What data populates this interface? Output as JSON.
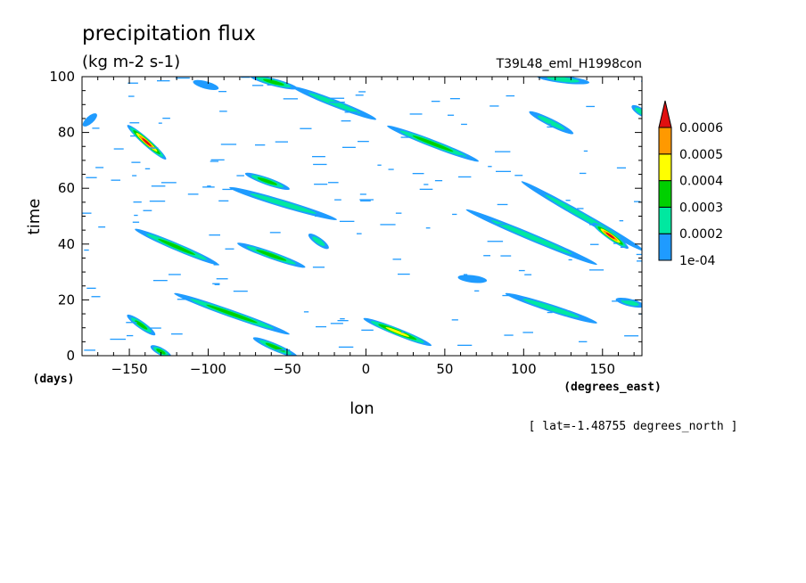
{
  "chart_data": {
    "type": "heatmap",
    "title": "precipitation flux",
    "units": "(kg m-2 s-1)",
    "run_label": "T39L48_eml_H1998con",
    "xlabel": "lon",
    "ylabel": "time",
    "x_units": "(degrees_east)",
    "y_units": "(days)",
    "xlim": [
      -180,
      175
    ],
    "ylim": [
      0,
      100
    ],
    "x_ticks": [
      -150,
      -100,
      -50,
      0,
      50,
      100,
      150
    ],
    "y_ticks": [
      0,
      20,
      40,
      60,
      80,
      100
    ],
    "annotation": "[ lat=-1.48755 degrees_north ]",
    "colorbar": {
      "levels": [
        "1e-04",
        "0.0002",
        "0.0003",
        "0.0004",
        "0.0005",
        "0.0006"
      ],
      "colors": [
        "#1f9bff",
        "#00e8a0",
        "#00d000",
        "#ffff00",
        "#ff9900",
        "#e01010"
      ]
    },
    "features": [
      {
        "lon": [
          -150,
          -128
        ],
        "time": [
          82,
          71
        ],
        "peak": 0.0006
      },
      {
        "lon": [
          -172,
          -178
        ],
        "time": [
          86,
          83
        ],
        "peak": 0.0001
      },
      {
        "lon": [
          -108,
          -95
        ],
        "time": [
          98,
          96
        ],
        "peak": 0.0001
      },
      {
        "lon": [
          -72,
          -45
        ],
        "time": [
          100,
          96
        ],
        "peak": 0.0003
      },
      {
        "lon": [
          -45,
          5
        ],
        "time": [
          96,
          85
        ],
        "peak": 0.0002
      },
      {
        "lon": [
          15,
          70
        ],
        "time": [
          82,
          70
        ],
        "peak": 0.0003
      },
      {
        "lon": [
          105,
          130
        ],
        "time": [
          87,
          80
        ],
        "peak": 0.0002
      },
      {
        "lon": [
          170,
          178
        ],
        "time": [
          89,
          86
        ],
        "peak": 0.0002
      },
      {
        "lon": [
          110,
          140
        ],
        "time": [
          100,
          98
        ],
        "peak": 0.0002
      },
      {
        "lon": [
          -75,
          -50
        ],
        "time": [
          65,
          60
        ],
        "peak": 0.0003
      },
      {
        "lon": [
          -85,
          -20
        ],
        "time": [
          60,
          49
        ],
        "peak": 0.0002
      },
      {
        "lon": [
          100,
          175
        ],
        "time": [
          62,
          38
        ],
        "peak": 0.0002
      },
      {
        "lon": [
          145,
          165
        ],
        "time": [
          47,
          39
        ],
        "peak": 0.0006
      },
      {
        "lon": [
          65,
          145
        ],
        "time": [
          52,
          33
        ],
        "peak": 0.0002
      },
      {
        "lon": [
          -145,
          -95
        ],
        "time": [
          45,
          33
        ],
        "peak": 0.0003
      },
      {
        "lon": [
          -80,
          -40
        ],
        "time": [
          40,
          32
        ],
        "peak": 0.0003
      },
      {
        "lon": [
          -35,
          -25
        ],
        "time": [
          43,
          39
        ],
        "peak": 0.0002
      },
      {
        "lon": [
          -120,
          -50
        ],
        "time": [
          22,
          8
        ],
        "peak": 0.0003
      },
      {
        "lon": [
          -150,
          -135
        ],
        "time": [
          14,
          8
        ],
        "peak": 0.0003
      },
      {
        "lon": [
          -135,
          -125
        ],
        "time": [
          3,
          0
        ],
        "peak": 0.0003
      },
      {
        "lon": [
          -70,
          -45
        ],
        "time": [
          6,
          0
        ],
        "peak": 0.0003
      },
      {
        "lon": [
          0,
          40
        ],
        "time": [
          13,
          4
        ],
        "peak": 0.0004
      },
      {
        "lon": [
          90,
          145
        ],
        "time": [
          22,
          12
        ],
        "peak": 0.0002
      },
      {
        "lon": [
          60,
          75
        ],
        "time": [
          28,
          27
        ],
        "peak": 0.0001
      },
      {
        "lon": [
          160,
          175
        ],
        "time": [
          20,
          18
        ],
        "peak": 0.0002
      }
    ]
  }
}
